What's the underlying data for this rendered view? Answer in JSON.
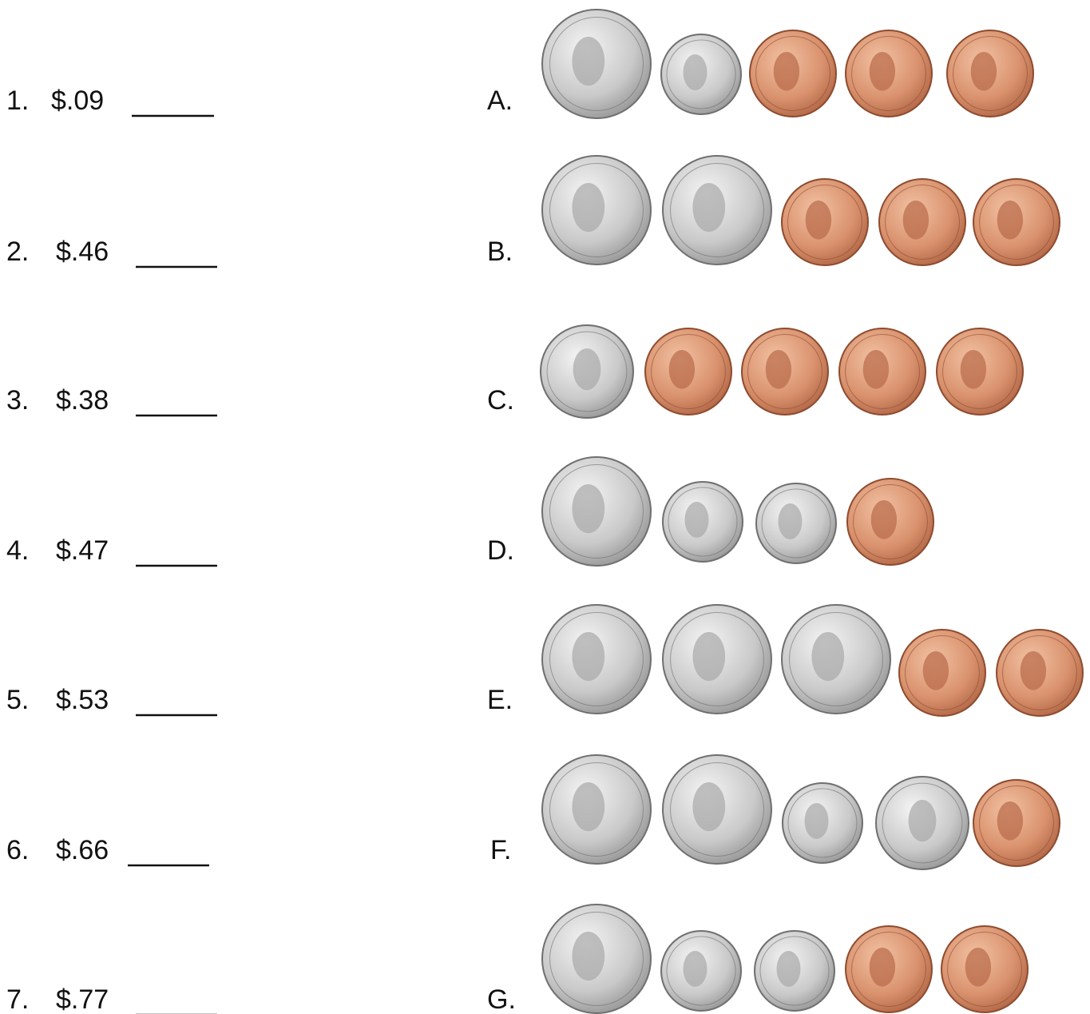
{
  "problems": [
    {
      "number": "1.",
      "amount": "$.09"
    },
    {
      "number": "2.",
      "amount": "$.46"
    },
    {
      "number": "3.",
      "amount": "$.38"
    },
    {
      "number": "4.",
      "amount": "$.47"
    },
    {
      "number": "5.",
      "amount": "$.53"
    },
    {
      "number": "6.",
      "amount": "$.66"
    },
    {
      "number": "7.",
      "amount": "$.77"
    }
  ],
  "options": [
    {
      "letter": "A."
    },
    {
      "letter": "B."
    },
    {
      "letter": "C."
    },
    {
      "letter": "D."
    },
    {
      "letter": "E."
    },
    {
      "letter": "F."
    },
    {
      "letter": "G."
    }
  ]
}
